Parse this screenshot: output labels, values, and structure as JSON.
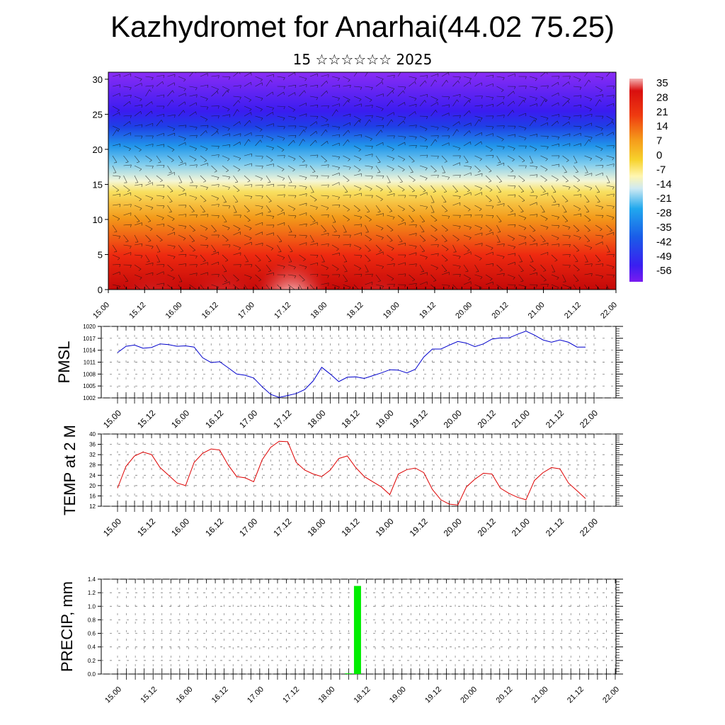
{
  "title": "Kazhydromet for Anarhai(44.02 75.25)",
  "subtitle": "15 ☆☆☆☆☆☆ 2025",
  "x_tick_labels": [
    "15.00",
    "15.12",
    "16.00",
    "16.12",
    "17.00",
    "17.12",
    "18.00",
    "18.12",
    "19.00",
    "19.12",
    "20.00",
    "20.12",
    "21.00",
    "21.12",
    "22.00"
  ],
  "chart_data": [
    {
      "type": "heatmap",
      "name": "temperature-wind-cross-section",
      "x_ticks": [
        "15.00",
        "15.12",
        "16.00",
        "16.12",
        "17.00",
        "17.12",
        "18.00",
        "18.12",
        "19.00",
        "19.12",
        "20.00",
        "20.12",
        "21.00",
        "21.12",
        "22.00"
      ],
      "y_ticks": [
        0,
        5,
        10,
        15,
        20,
        25,
        30
      ],
      "ylim": [
        0,
        31
      ],
      "colorbar_labels": [
        "35",
        "28",
        "21",
        "14",
        "7",
        "0",
        "-7",
        "-14",
        "-21",
        "-28",
        "-35",
        "-42",
        "-49",
        "-56"
      ],
      "colorbar_range": [
        -60,
        38
      ],
      "palette": [
        "#7a1bf0",
        "#3a1ff0",
        "#1a5ce8",
        "#21a8ee",
        "#a6d9ef",
        "#fff6b0",
        "#f7d22c",
        "#f59a1a",
        "#ef3a10",
        "#d90f0f",
        "#f4b3b3"
      ]
    },
    {
      "type": "line",
      "name": "PMSL",
      "ylabel": "PMSL",
      "ylim": [
        1002,
        1020
      ],
      "y_ticks": [
        1002,
        1005,
        1008,
        1011,
        1014,
        1017,
        1020
      ],
      "color": "#0000cc",
      "x_hours": [
        0,
        3,
        6,
        9,
        12,
        15,
        18,
        21,
        24,
        27,
        30,
        33,
        36,
        39,
        42,
        45,
        48,
        51,
        54,
        57,
        60,
        63,
        66,
        69,
        72,
        75,
        78,
        81,
        84,
        87,
        90,
        93,
        96,
        99,
        102,
        105,
        108,
        111,
        114,
        117,
        120,
        123,
        126,
        129,
        132,
        135,
        138,
        141,
        144,
        147,
        150,
        153,
        156,
        159,
        162,
        165
      ],
      "values": [
        1013.4,
        1015.0,
        1015.3,
        1014.5,
        1014.7,
        1015.6,
        1015.4,
        1015.0,
        1015.1,
        1014.8,
        1012.1,
        1010.9,
        1011.1,
        1009.6,
        1008.0,
        1007.7,
        1007.0,
        1004.8,
        1002.9,
        1002.1,
        1002.6,
        1003.1,
        1004.1,
        1006.3,
        1009.7,
        1008.0,
        1006.1,
        1007.2,
        1007.3,
        1006.9,
        1007.6,
        1008.3,
        1009.1,
        1009.0,
        1008.3,
        1009.2,
        1012.3,
        1014.3,
        1014.3,
        1015.3,
        1016.2,
        1015.8,
        1014.9,
        1015.6,
        1016.8,
        1017.1,
        1017.1,
        1018.0,
        1018.8,
        1017.8,
        1016.6,
        1016.0,
        1016.6,
        1016.0,
        1014.8,
        1014.8
      ]
    },
    {
      "type": "line",
      "name": "TEMP at 2 M",
      "ylabel": "TEMP at 2 M",
      "ylim": [
        12,
        40
      ],
      "y_ticks": [
        12,
        16,
        20,
        24,
        28,
        32,
        36,
        40
      ],
      "color": "#dd0000",
      "x_hours": [
        0,
        3,
        6,
        9,
        12,
        15,
        18,
        21,
        24,
        27,
        30,
        33,
        36,
        39,
        42,
        45,
        48,
        51,
        54,
        57,
        60,
        63,
        66,
        69,
        72,
        75,
        78,
        81,
        84,
        87,
        90,
        93,
        96,
        99,
        102,
        105,
        108,
        111,
        114,
        117,
        120,
        123,
        126,
        129,
        132,
        135,
        138,
        141,
        144,
        147,
        150,
        153,
        156,
        159,
        162,
        165
      ],
      "values": [
        19.0,
        27.5,
        31.5,
        33.0,
        32.0,
        27.0,
        24.0,
        21.0,
        20.0,
        29.0,
        32.5,
        34.2,
        33.8,
        28.0,
        23.5,
        23.0,
        21.5,
        30.0,
        34.8,
        37.2,
        37.0,
        29.0,
        26.0,
        24.5,
        23.5,
        26.0,
        30.5,
        31.5,
        27.0,
        23.5,
        21.5,
        19.5,
        16.5,
        24.5,
        26.2,
        26.8,
        25.0,
        18.5,
        14.5,
        12.8,
        12.5,
        19.5,
        22.5,
        24.8,
        24.5,
        19.0,
        17.0,
        15.5,
        14.5,
        22.0,
        25.0,
        27.0,
        26.5,
        21.0,
        18.0,
        15.0
      ]
    },
    {
      "type": "bar",
      "name": "PRECIP",
      "ylabel": "PRECIP, mm",
      "ylim": [
        0,
        1.4
      ],
      "y_ticks": [
        0.0,
        0.2,
        0.4,
        0.6,
        0.8,
        1.0,
        1.2,
        1.4
      ],
      "color": "#00ee00",
      "x_hours": [
        78,
        81
      ],
      "values": [
        0.01,
        1.3
      ]
    }
  ]
}
